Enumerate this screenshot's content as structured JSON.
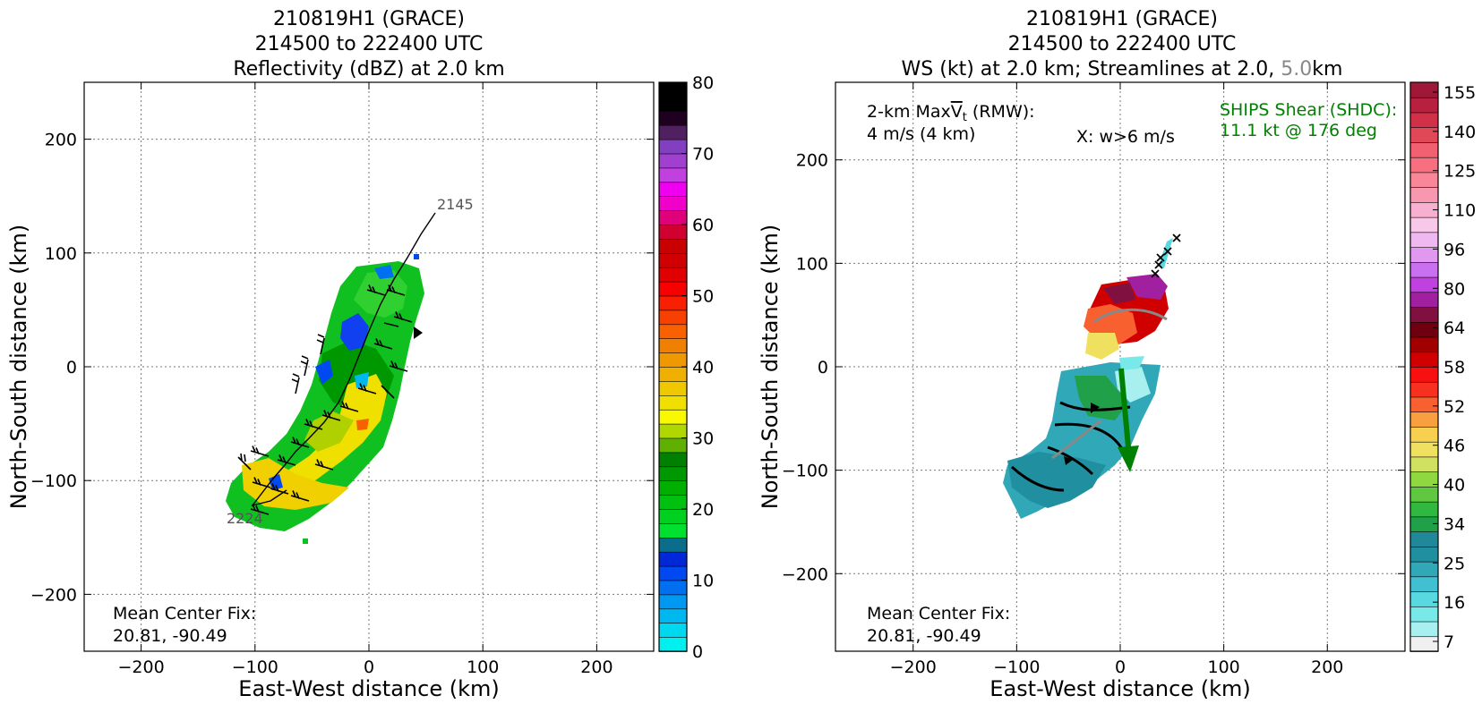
{
  "chart_data": [
    {
      "type": "heatmap",
      "title_lines": [
        "210819H1 (GRACE)",
        "214500 to 222400 UTC",
        "Reflectivity (dBZ) at 2.0 km"
      ],
      "xlabel": "East-West distance (km)",
      "ylabel": "North-South distance (km)",
      "xlim": [
        -250,
        250
      ],
      "ylim": [
        -250,
        250
      ],
      "xticks": [
        -200,
        -100,
        0,
        100,
        200
      ],
      "yticks": [
        -200,
        -100,
        0,
        100,
        200
      ],
      "grid": true,
      "colorbar": {
        "min": 0,
        "max": 80,
        "ticks": [
          0,
          10,
          20,
          30,
          40,
          50,
          60,
          70,
          80
        ],
        "colors": [
          "#00f0f0",
          "#00d8f0",
          "#00b8f0",
          "#0098f0",
          "#0070f0",
          "#0048f0",
          "#0028d8",
          "#0a6e8a",
          "#00e030",
          "#00d020",
          "#00c010",
          "#00b000",
          "#009800",
          "#008000",
          "#60b000",
          "#b0d800",
          "#f8f800",
          "#f0e000",
          "#f0c800",
          "#f0b000",
          "#f09800",
          "#f08000",
          "#f86000",
          "#f84000",
          "#f82000",
          "#f80000",
          "#e00000",
          "#d00000",
          "#c80000",
          "#d00030",
          "#e0007a",
          "#f000c8",
          "#f000f0",
          "#c040e0",
          "#a040d0",
          "#8040c0",
          "#502060",
          "#200020",
          "#000000",
          "#000000"
        ]
      },
      "track_labels": [
        {
          "text": "2145",
          "x": 60,
          "y": 140
        },
        {
          "text": "2224",
          "x": -125,
          "y": -130
        }
      ],
      "annotation": [
        "Mean Center Fix:",
        "20.81, -90.49"
      ]
    },
    {
      "type": "heatmap",
      "title_lines": [
        "210819H1 (GRACE)",
        "214500 to 222400 UTC"
      ],
      "title_line3": {
        "part1": "WS (kt) at 2.0 km; Streamlines at 2.0, ",
        "part2": "5.0",
        "part3": "km",
        "part2_color": "#888888"
      },
      "xlabel": "East-West distance (km)",
      "ylabel": "North-South distance (km)",
      "xlim": [
        -275,
        275
      ],
      "ylim": [
        -275,
        275
      ],
      "xticks": [
        -200,
        -100,
        0,
        100,
        200
      ],
      "yticks": [
        -200,
        -100,
        0,
        100,
        200
      ],
      "grid": true,
      "colorbar": {
        "ticks": [
          "7",
          "16",
          "25",
          "34",
          "40",
          "46",
          "52",
          "58",
          "64",
          "80",
          "96",
          "110",
          "125",
          "140",
          "155"
        ],
        "colors": [
          "#f0f0f0",
          "#a8f0f0",
          "#78e8e8",
          "#58d8e0",
          "#40c0d0",
          "#30a8b8",
          "#2090a0",
          "#208898",
          "#20a048",
          "#30b840",
          "#60c840",
          "#90d840",
          "#d0e060",
          "#f0e060",
          "#f8d050",
          "#f8a040",
          "#f86030",
          "#f83020",
          "#f81010",
          "#d00000",
          "#a00000",
          "#700010",
          "#801040",
          "#a020a0",
          "#c040e0",
          "#c870f0",
          "#e098f0",
          "#f0b8f0",
          "#f8c8e8",
          "#f8b0d0",
          "#f898b0",
          "#f88898",
          "#f87080",
          "#f06070",
          "#e04858",
          "#d03048",
          "#b82040",
          "#a01838"
        ]
      },
      "maxvt_lines": [
        "2-km MaxV̅t (RMW):",
        "4 m/s (4 km)"
      ],
      "maxvt_label": {
        "prefix": "2-km Max",
        "v": "V",
        "t": "t",
        "suffix": " (RMW):"
      },
      "w_label": "X: w>6 m/s",
      "shear_lines": [
        "SHIPS Shear (SHDC):",
        "11.1 kt @ 176 deg"
      ],
      "shear_color": "#008000",
      "annotation": [
        "Mean Center Fix:",
        "20.81, -90.49"
      ]
    }
  ]
}
